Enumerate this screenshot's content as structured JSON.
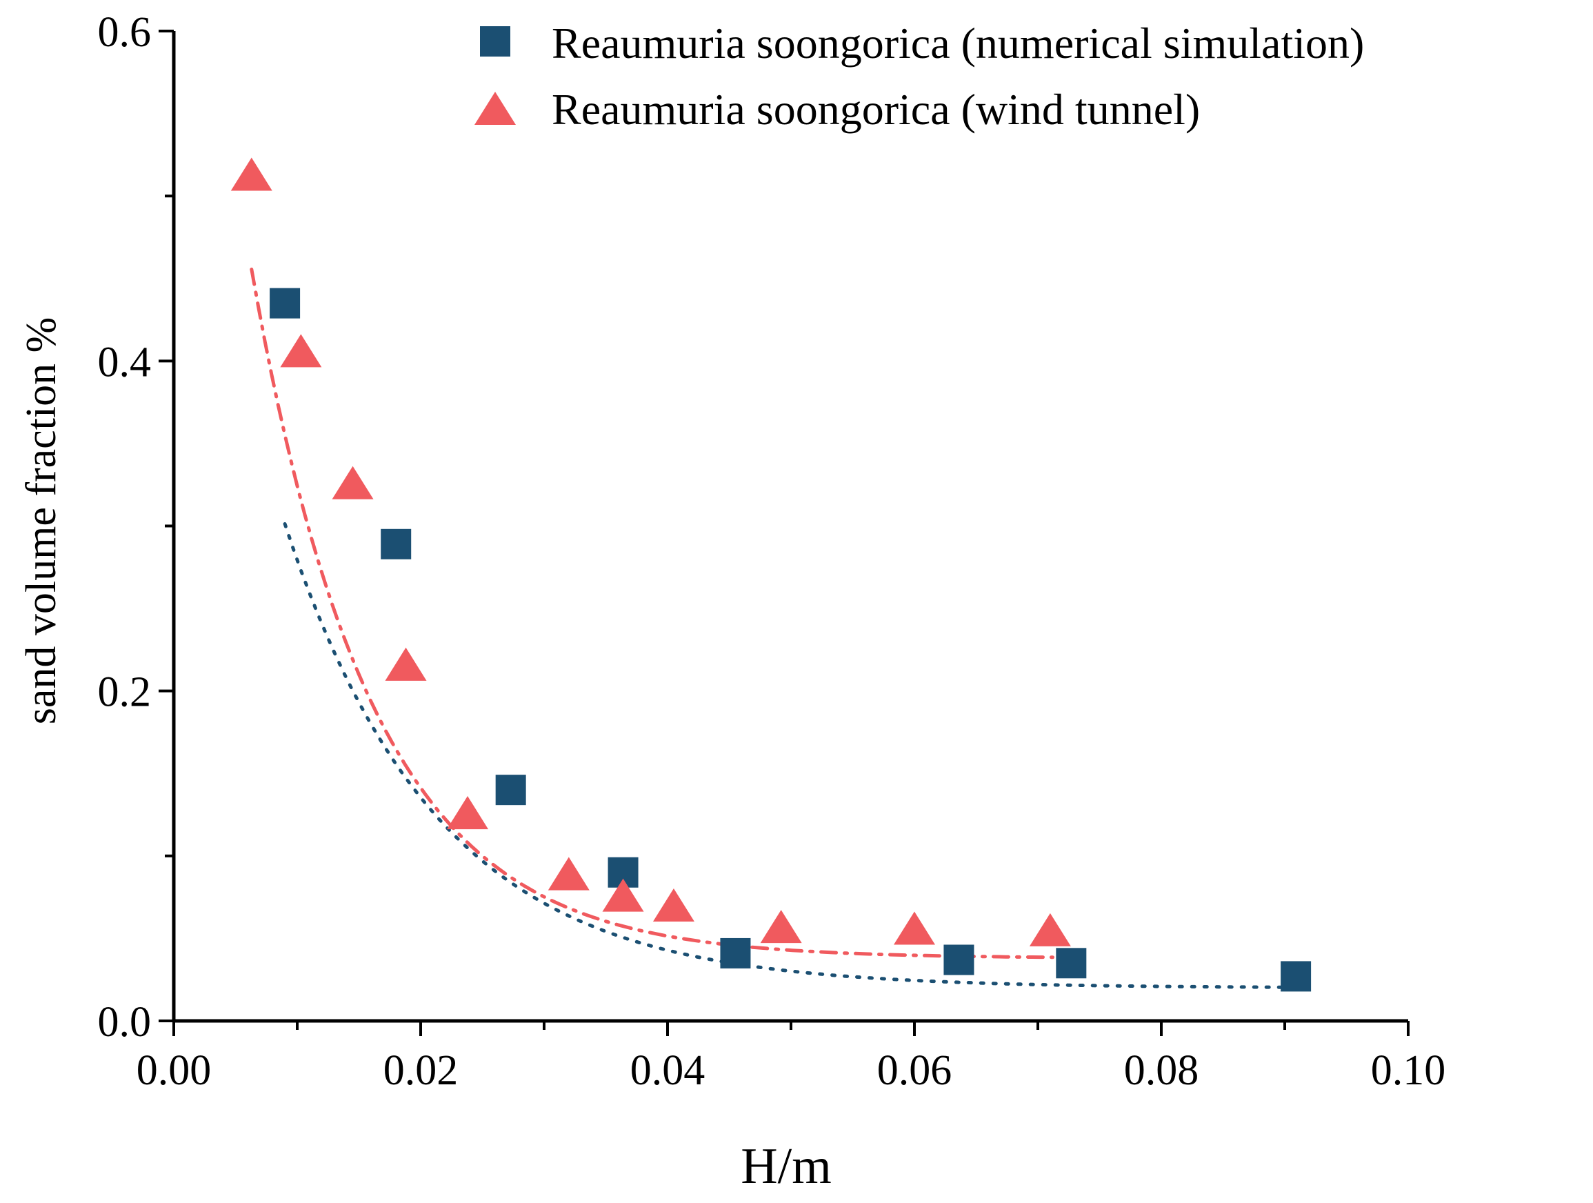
{
  "chart_data": {
    "type": "scatter",
    "title": "",
    "xlabel": "H/m",
    "ylabel": "sand volume fraction %",
    "xlim": [
      0.0,
      0.1
    ],
    "ylim": [
      0.0,
      0.6
    ],
    "x_ticks": [
      0.0,
      0.02,
      0.04,
      0.06,
      0.08,
      0.1
    ],
    "x_tick_labels": [
      "0.00",
      "0.02",
      "0.04",
      "0.06",
      "0.08",
      "0.10"
    ],
    "y_ticks": [
      0.0,
      0.2,
      0.4,
      0.6
    ],
    "y_tick_labels": [
      "0.0",
      "0.2",
      "0.4",
      "0.6"
    ],
    "x_minor_ticks": [
      0.01,
      0.03,
      0.05,
      0.07,
      0.09
    ],
    "y_minor_ticks": [
      0.1,
      0.3,
      0.5
    ],
    "grid": false,
    "legend_position": "top-right",
    "series": [
      {
        "name": "Reaumuria soongorica (numerical simulation)",
        "marker": "square",
        "color": "#1b4f72",
        "line_style": "dotted",
        "x": [
          0.009,
          0.018,
          0.0273,
          0.0364,
          0.0455,
          0.0636,
          0.0727,
          0.0909
        ],
        "y": [
          0.435,
          0.289,
          0.14,
          0.09,
          0.041,
          0.037,
          0.035,
          0.027
        ],
        "fit": {
          "x": [
            0.009,
            0.0909
          ],
          "y0": 0.02,
          "a": 0.583,
          "k": 81.0
        }
      },
      {
        "name": "Reaumuria soongorica (wind tunnel)",
        "marker": "triangle",
        "color": "#f05a5e",
        "line_style": "dashed-dotted",
        "x": [
          0.0063,
          0.0103,
          0.0145,
          0.0188,
          0.0238,
          0.032,
          0.0364,
          0.0405,
          0.0492,
          0.06,
          0.071
        ],
        "y": [
          0.512,
          0.405,
          0.325,
          0.215,
          0.125,
          0.088,
          0.075,
          0.069,
          0.056,
          0.055,
          0.054
        ],
        "fit": {
          "x": [
            0.0063,
            0.0712
          ],
          "y0": 0.038,
          "a": 0.794,
          "k": 102.0
        }
      }
    ]
  }
}
